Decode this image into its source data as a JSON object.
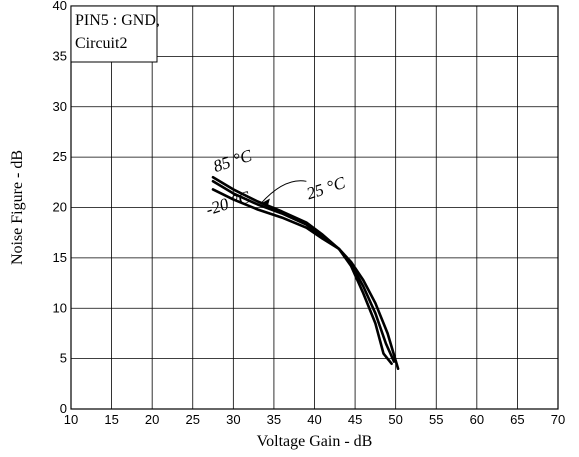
{
  "chart_data": {
    "type": "line",
    "title": "",
    "xlabel": "Voltage Gain - dB",
    "ylabel": "Noise Figure - dB",
    "xlim": [
      10,
      70
    ],
    "ylim": [
      0,
      40
    ],
    "xticks": [
      10,
      15,
      20,
      25,
      30,
      35,
      40,
      45,
      50,
      55,
      60,
      65,
      70
    ],
    "yticks": [
      0,
      5,
      10,
      15,
      20,
      25,
      30,
      35,
      40
    ],
    "grid": true,
    "annotation": [
      "PIN5 : GND,",
      "Circuit2"
    ],
    "series": [
      {
        "name": "85 °C",
        "x": [
          27.5,
          30,
          33,
          36,
          39,
          41,
          43,
          44.5,
          46,
          47.5,
          48.5,
          49.5
        ],
        "y": [
          23.0,
          21.8,
          20.6,
          19.6,
          18.5,
          17.3,
          15.9,
          14.2,
          11.5,
          8.5,
          5.5,
          4.5
        ]
      },
      {
        "name": "25 °C",
        "x": [
          27.5,
          30,
          33,
          36,
          39,
          41,
          43,
          44.5,
          46,
          47.5,
          48.8,
          49.8
        ],
        "y": [
          22.6,
          21.4,
          20.3,
          19.4,
          18.3,
          17.1,
          15.9,
          14.4,
          12.2,
          9.5,
          6.5,
          4.7
        ]
      },
      {
        "name": "-20 °C",
        "x": [
          27.5,
          30,
          33,
          36,
          39,
          41,
          43,
          44.5,
          46,
          47.5,
          49,
          50.3
        ],
        "y": [
          21.8,
          20.8,
          19.8,
          19.0,
          18.0,
          16.9,
          15.9,
          14.6,
          12.8,
          10.5,
          7.5,
          4.0
        ]
      }
    ]
  }
}
